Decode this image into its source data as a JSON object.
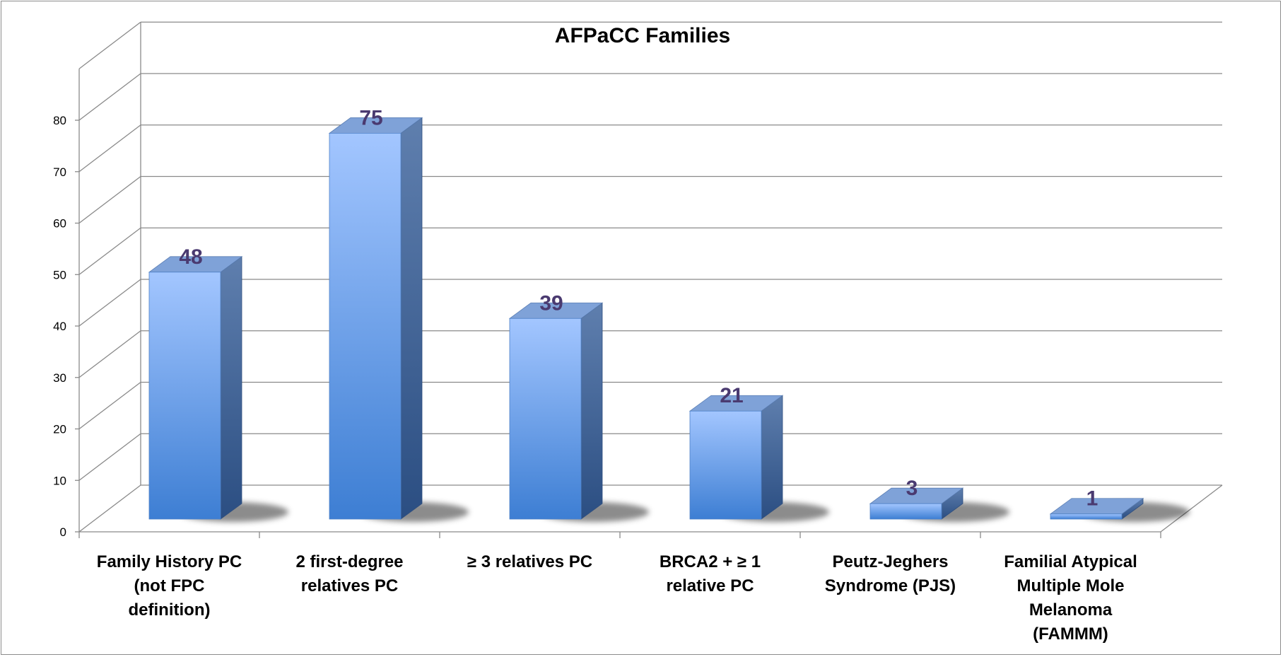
{
  "chart_data": {
    "type": "bar",
    "title": "AFPaCC Families",
    "categories": [
      [
        "Family History PC",
        "(not FPC",
        "definition)"
      ],
      [
        "2 first-degree",
        "relatives PC"
      ],
      [
        "≥ 3 relatives PC"
      ],
      [
        "BRCA2 + ≥ 1",
        "relative PC"
      ],
      [
        "Peutz-Jeghers",
        "Syndrome (PJS)"
      ],
      [
        "Familial Atypical",
        "Multiple Mole",
        "Melanoma",
        "(FAMMM)"
      ]
    ],
    "values": [
      48,
      75,
      39,
      21,
      3,
      1
    ],
    "data_labels": [
      "48",
      "75",
      "39",
      "21",
      "3",
      "1"
    ],
    "ylim": [
      0,
      80
    ],
    "yticks": [
      "0",
      "10",
      "20",
      "30",
      "40",
      "50",
      "60",
      "70",
      "80"
    ],
    "grid": true,
    "style": "3d-column",
    "colors": {
      "bar_light": "#9fc3ff",
      "bar_dark": "#3d7fd4",
      "bar_side": "#3a5f93",
      "bar_top": "#7c9fd6",
      "label": "#4a3a70",
      "grid": "#8a8a8a"
    }
  }
}
